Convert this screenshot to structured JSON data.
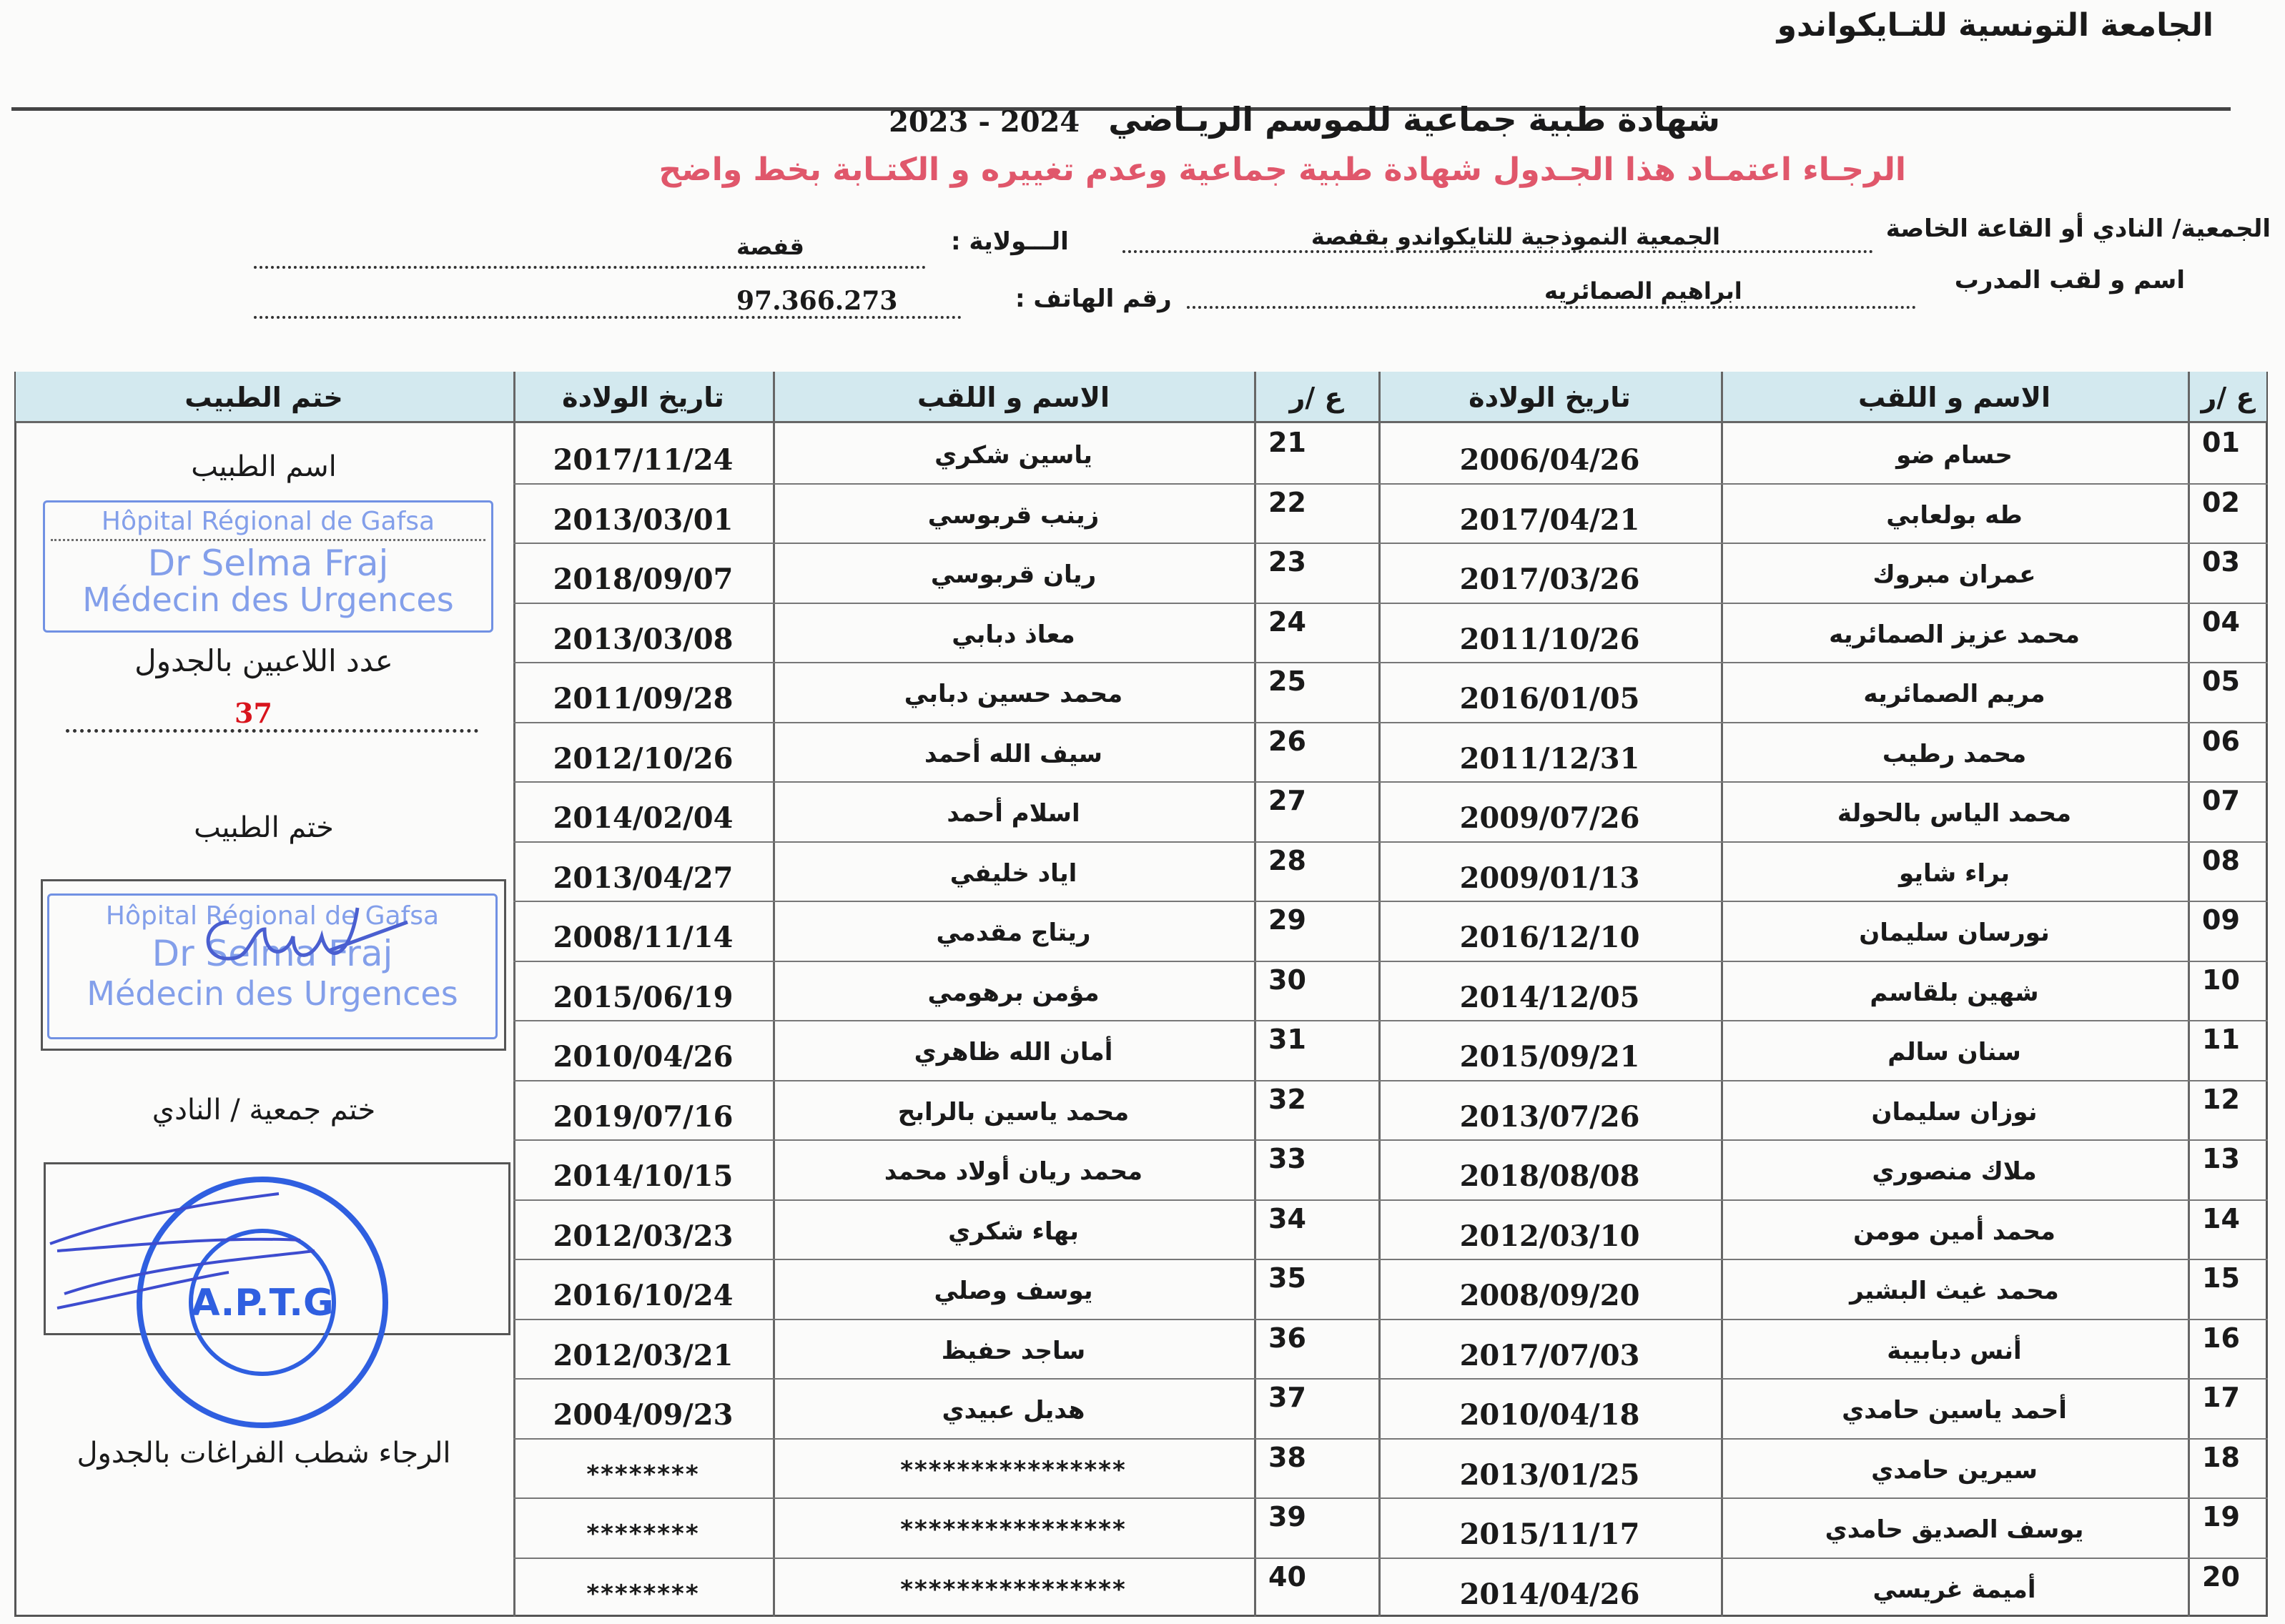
{
  "header": {
    "organization": "الجامعة التونسية للتـايكواندو",
    "title": "شهادة طبية جماعية   للموسم الريـاضي",
    "season": "2023 - 2024",
    "warning": "الرجـاء اعتمـاد هذا الجـدول  شهادة طبية جماعية وعدم تغييره و الكتـابة بخط واضح"
  },
  "fields": {
    "club_label": "الجمعية/ النادي أو القاعة الخاصة",
    "club_value": "الجمعية النموذجية للتايكواندو بقفصة",
    "state_label": "الـــولاية :",
    "state_value": "قفصة",
    "coach_label": "اسم و لقب المدرب",
    "coach_value": "ابراهيم الصمائريه",
    "phone_label": "رقم الهاتف :",
    "phone_value": "97.366.273"
  },
  "table": {
    "headers": {
      "num": "ع /ر",
      "name": "الاسم و اللقب",
      "birth": "تاريخ الولادة",
      "stamp": "ختم الطبيب"
    },
    "rows": [
      {
        "num": "01",
        "name": "حسام ضو",
        "birth": "2006/04/26"
      },
      {
        "num": "02",
        "name": "طه بولعابي",
        "birth": "2017/04/21"
      },
      {
        "num": "03",
        "name": "عمران مبروك",
        "birth": "2017/03/26"
      },
      {
        "num": "04",
        "name": "محمد عزيز الصمائريه",
        "birth": "2011/10/26"
      },
      {
        "num": "05",
        "name": "مريم الصمائريه",
        "birth": "2016/01/05"
      },
      {
        "num": "06",
        "name": "محمد رطيب",
        "birth": "2011/12/31"
      },
      {
        "num": "07",
        "name": "محمد الياس بالحولة",
        "birth": "2009/07/26"
      },
      {
        "num": "08",
        "name": "براء شايو",
        "birth": "2009/01/13"
      },
      {
        "num": "09",
        "name": "نورسان سليمان",
        "birth": "2016/12/10"
      },
      {
        "num": "10",
        "name": "شهين بلقاسم",
        "birth": "2014/12/05"
      },
      {
        "num": "11",
        "name": "سنان سالم",
        "birth": "2015/09/21"
      },
      {
        "num": "12",
        "name": "نوزان سليمان",
        "birth": "2013/07/26"
      },
      {
        "num": "13",
        "name": "ملاك منصوري",
        "birth": "2018/08/08"
      },
      {
        "num": "14",
        "name": "محمد أمين مومن",
        "birth": "2012/03/10"
      },
      {
        "num": "15",
        "name": "محمد غيث البشير",
        "birth": "2008/09/20"
      },
      {
        "num": "16",
        "name": "أنس دبابيبة",
        "birth": "2017/07/03"
      },
      {
        "num": "17",
        "name": "أحمد ياسين حامدي",
        "birth": "2010/04/18"
      },
      {
        "num": "18",
        "name": "سيرين حامدي",
        "birth": "2013/01/25"
      },
      {
        "num": "19",
        "name": "يوسف الصديق حامدي",
        "birth": "2015/11/17"
      },
      {
        "num": "20",
        "name": "أميمة غريسي",
        "birth": "2014/04/26"
      },
      {
        "num": "21",
        "name": "ياسين شكري",
        "birth": "2017/11/24"
      },
      {
        "num": "22",
        "name": "زينب قربوسي",
        "birth": "2013/03/01"
      },
      {
        "num": "23",
        "name": "ريان قربوسي",
        "birth": "2018/09/07"
      },
      {
        "num": "24",
        "name": "معاذ دبابي",
        "birth": "2013/03/08"
      },
      {
        "num": "25",
        "name": "محمد حسين دبابي",
        "birth": "2011/09/28"
      },
      {
        "num": "26",
        "name": "سيف الله أحمد",
        "birth": "2012/10/26"
      },
      {
        "num": "27",
        "name": "اسلام أحمد",
        "birth": "2014/02/04"
      },
      {
        "num": "28",
        "name": "اياد خليفي",
        "birth": "2013/04/27"
      },
      {
        "num": "29",
        "name": "ريتاج مقدمي",
        "birth": "2008/11/14"
      },
      {
        "num": "30",
        "name": "مؤمن برهومي",
        "birth": "2015/06/19"
      },
      {
        "num": "31",
        "name": "أمان الله ظاهري",
        "birth": "2010/04/26"
      },
      {
        "num": "32",
        "name": "محمد ياسين بالرابح",
        "birth": "2019/07/16"
      },
      {
        "num": "33",
        "name": "محمد ريان أولاد محمد",
        "birth": "2014/10/15"
      },
      {
        "num": "34",
        "name": "بهاء شكري",
        "birth": "2012/03/23"
      },
      {
        "num": "35",
        "name": "يوسف وصلي",
        "birth": "2016/10/24"
      },
      {
        "num": "36",
        "name": "ساجد حفيظ",
        "birth": "2012/03/21"
      },
      {
        "num": "37",
        "name": "هديل عبيدي",
        "birth": "2004/09/23"
      },
      {
        "num": "38",
        "name": "****************",
        "birth": "********"
      },
      {
        "num": "39",
        "name": "****************",
        "birth": "********"
      },
      {
        "num": "40",
        "name": "****************",
        "birth": "********"
      }
    ]
  },
  "side": {
    "doctor_name_label": "اسم الطبيب",
    "player_count_label": "عدد اللاعبين بالجدول",
    "player_count": "37",
    "doctor_stamp_label": "ختم الطبيب",
    "club_stamp_label": "ختم جمعية / النادي",
    "footer_note": "الرجاء شطب   الفراغات بالجدول"
  },
  "stamps": {
    "hospital_line1": "Hôpital Régional de Gafsa",
    "hospital_line2": "Dr Selma Fraj",
    "hospital_line3": "Médecin des Urgences",
    "club_seal": "A.P.T.G",
    "stamp_color": "#5a7fe0",
    "warning_color": "#e0576b",
    "header_color": "#d3e9ef"
  }
}
